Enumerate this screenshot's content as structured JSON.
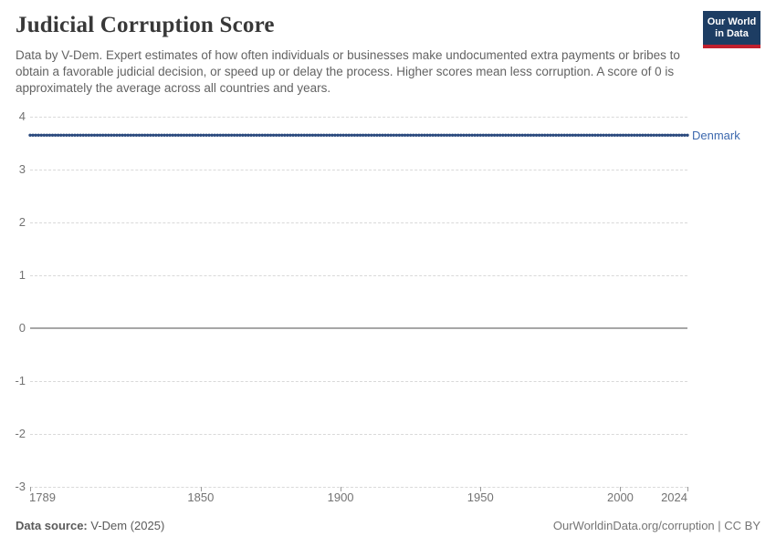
{
  "header": {
    "title": "Judicial Corruption Score",
    "subtitle": "Data by V-Dem. Expert estimates of how often individuals or businesses make undocumented extra payments or bribes to obtain a favorable judicial decision, or speed up or delay the process. Higher scores mean less corruption. A score of 0 is approximately the average across all countries and years.",
    "logo": {
      "line1": "Our World",
      "line2": "in Data",
      "bg_color": "#1d3d63",
      "accent_color": "#c0202e"
    }
  },
  "chart_data": {
    "type": "line",
    "title": "Judicial Corruption Score",
    "xlabel": "",
    "ylabel": "",
    "xlim": [
      1789,
      2024
    ],
    "ylim": [
      -3,
      4
    ],
    "x_ticks": [
      1789,
      1850,
      1900,
      1950,
      2000,
      2024
    ],
    "y_ticks": [
      4,
      3,
      2,
      1,
      0,
      -1,
      -2,
      -3
    ],
    "grid": "horizontal dashed, solid line at 0",
    "legend_position": "label at end of line",
    "series": [
      {
        "name": "Denmark",
        "x": [
          1789,
          2024
        ],
        "y": [
          3.65,
          3.65
        ],
        "line_color": "#51699f",
        "dot_color": "#2b4a7e",
        "label_color": "#3d69ae",
        "markers": "small dot every year"
      }
    ]
  },
  "footer": {
    "source_label": "Data source:",
    "source_value": " V-Dem (2025)",
    "rights": "OurWorldinData.org/corruption | CC BY"
  }
}
